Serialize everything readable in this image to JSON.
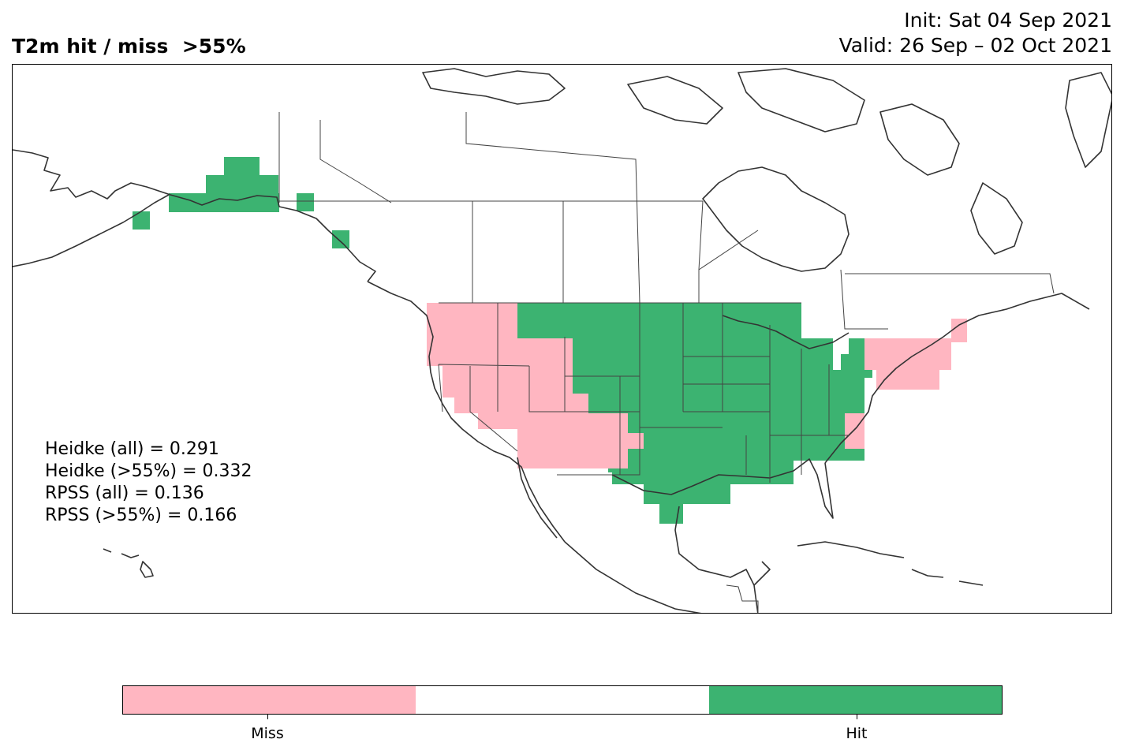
{
  "title": {
    "left": "T2m hit / miss  >55%",
    "init": "Init: Sat 04 Sep 2021",
    "valid": "Valid: 26 Sep – 02 Oct 2021"
  },
  "scores": {
    "heidke_all": "Heidke (all) = 0.291",
    "heidke_55": "Heidke (>55%) = 0.332",
    "rpss_all": "RPSS (all) = 0.136",
    "rpss_55": "RPSS (>55%) = 0.166"
  },
  "legend": {
    "miss_label": "Miss",
    "hit_label": "Hit",
    "colors": {
      "miss": "#ffb6c1",
      "neutral": "#ffffff",
      "hit": "#3cb371"
    }
  },
  "map": {
    "region": "North America",
    "hit_color": "#3cb371",
    "miss_color": "#ffb6c1",
    "coastline_color": "#333333"
  }
}
